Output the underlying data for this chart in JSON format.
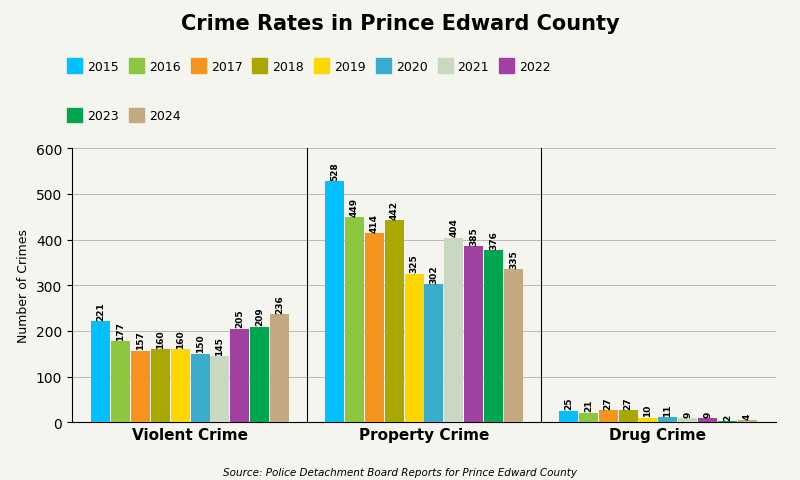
{
  "title": "Crime Rates in Prince Edward County",
  "subtitle": "Source: Police Detachment Board Reports for Prince Edward County",
  "ylabel": "Number of Crimes",
  "categories": [
    "Violent Crime",
    "Property Crime",
    "Drug Crime"
  ],
  "years": [
    "2015",
    "2016",
    "2017",
    "2018",
    "2019",
    "2020",
    "2021",
    "2022",
    "2023",
    "2024"
  ],
  "values": {
    "Violent Crime": [
      221,
      177,
      157,
      160,
      160,
      150,
      145,
      205,
      209,
      236
    ],
    "Property Crime": [
      528,
      449,
      414,
      442,
      325,
      302,
      404,
      385,
      376,
      335
    ],
    "Drug Crime": [
      25,
      21,
      27,
      27,
      10,
      11,
      9,
      9,
      2,
      4
    ]
  },
  "colors": [
    "#00C0FF",
    "#8DC63F",
    "#F7941D",
    "#A8A800",
    "#FFD700",
    "#3AACCC",
    "#C8D9C0",
    "#A040A0",
    "#00A550",
    "#C4A882"
  ],
  "ylim": [
    0,
    600
  ],
  "yticks": [
    0,
    100,
    200,
    300,
    400,
    500,
    600
  ],
  "background_color": "#F5F5F0",
  "title_fontsize": 15,
  "bar_value_fontsize": 6.5
}
